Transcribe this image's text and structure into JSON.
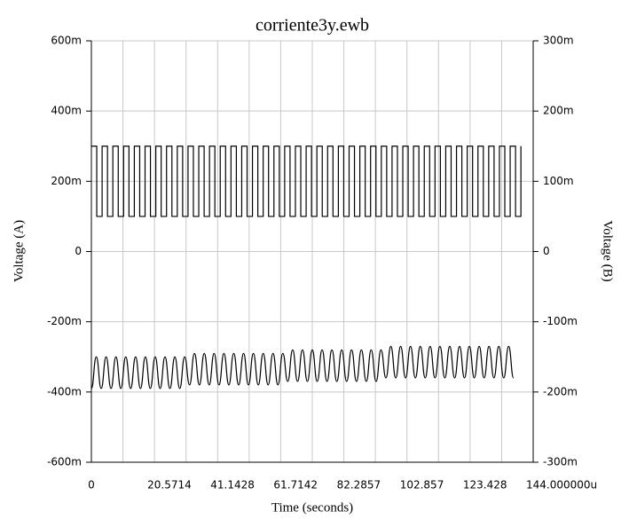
{
  "chart_data": {
    "type": "line",
    "title": "corriente3y.ewb",
    "x_label": "Time (seconds)",
    "y_label": "Voltage (A)",
    "y2_label": "Voltage (B)",
    "xlim": [
      0,
      144
    ],
    "xticks": [
      0,
      {
        "value": 20.5714,
        "label": "20.5714"
      },
      {
        "value": 41.1428,
        "label": "41.1428"
      },
      {
        "value": 61.7142,
        "label": "61.7142"
      },
      {
        "value": 82.2857,
        "label": "82.2857"
      },
      {
        "value": 102.857,
        "label": "102.857"
      },
      {
        "value": 123.428,
        "label": "123.428"
      },
      {
        "value": 144,
        "label": "144.000000u"
      }
    ],
    "xminor": [
      10.2857,
      30.8571,
      51.4285,
      72,
      92.5714,
      113.1428,
      133.7142
    ],
    "ylim": [
      -0.6,
      0.6
    ],
    "yticks": [
      {
        "value": 0.6,
        "label": "600m"
      },
      {
        "value": 0.4,
        "label": "400m"
      },
      {
        "value": 0.2,
        "label": "200m"
      },
      0,
      {
        "value": -0.2,
        "label": "-200m"
      },
      {
        "value": -0.4,
        "label": "-400m"
      },
      {
        "value": -0.6,
        "label": "-600m"
      }
    ],
    "y2lim": [
      -0.3,
      0.3
    ],
    "y2ticks": [
      {
        "value": 0.3,
        "label": "300m"
      },
      {
        "value": 0.2,
        "label": "200m"
      },
      {
        "value": 0.1,
        "label": "100m"
      },
      0,
      {
        "value": -0.1,
        "label": "-100m"
      },
      {
        "value": -0.2,
        "label": "-200m"
      },
      {
        "value": -0.3,
        "label": "-300m"
      }
    ],
    "grid": true,
    "series": [
      {
        "color": "#000000",
        "shape": "step",
        "x": [
          0,
          1.75,
          3.5,
          5.25,
          7,
          8.75,
          10.5,
          12.25,
          14,
          15.75,
          17.5,
          19.25,
          21,
          22.75,
          24.5,
          26.25,
          28,
          29.75,
          31.5,
          33.25,
          35,
          36.75,
          38.5,
          40.25,
          42,
          43.75,
          45.5,
          47.25,
          49,
          50.75,
          52.5,
          54.25,
          56,
          57.75,
          59.5,
          61.25,
          63,
          64.75,
          66.5,
          68.25,
          70,
          71.75,
          73.5,
          75.25,
          77,
          78.75,
          80.5,
          82.25,
          84,
          85.75,
          87.5,
          89.25,
          91,
          92.75,
          94.5,
          96.25,
          98,
          99.75,
          101.5,
          103.25,
          105,
          106.75,
          108.5,
          110.25,
          112,
          113.75,
          115.5,
          117.25,
          119,
          120.75,
          122.5,
          124.25,
          126,
          127.75,
          129.5,
          131.25,
          133,
          134.75,
          136.5,
          138.25,
          140
        ],
        "values": [
          0.3,
          0.1,
          0.3,
          0.1,
          0.3,
          0.1,
          0.3,
          0.1,
          0.3,
          0.1,
          0.3,
          0.1,
          0.3,
          0.1,
          0.3,
          0.1,
          0.3,
          0.1,
          0.3,
          0.1,
          0.3,
          0.1,
          0.3,
          0.1,
          0.3,
          0.1,
          0.3,
          0.1,
          0.3,
          0.1,
          0.3,
          0.1,
          0.3,
          0.1,
          0.3,
          0.1,
          0.3,
          0.1,
          0.3,
          0.1,
          0.3,
          0.1,
          0.3,
          0.1,
          0.3,
          0.1,
          0.3,
          0.1,
          0.3,
          0.1,
          0.3,
          0.1,
          0.3,
          0.1,
          0.3,
          0.1,
          0.3,
          0.1,
          0.3,
          0.1,
          0.3,
          0.1,
          0.3,
          0.1,
          0.3,
          0.1,
          0.3,
          0.1,
          0.3,
          0.1,
          0.3,
          0.1,
          0.3,
          0.1,
          0.3,
          0.1,
          0.3,
          0.1,
          0.3,
          0.1,
          0.3
        ]
      },
      {
        "color": "#000000",
        "shape": "smooth",
        "x": [
          0,
          1.6,
          3.2,
          4.8,
          6.4,
          8,
          9.6,
          11.2,
          12.8,
          14.4,
          16,
          17.6,
          19.2,
          20.8,
          22.4,
          24,
          25.6,
          27.2,
          28.8,
          30.4,
          32,
          33.6,
          35.2,
          36.8,
          38.4,
          40,
          41.6,
          43.2,
          44.8,
          46.4,
          48,
          49.6,
          51.2,
          52.8,
          54.4,
          56,
          57.6,
          59.2,
          60.8,
          62.4,
          64,
          65.6,
          67.2,
          68.8,
          70.4,
          72,
          73.6,
          75.2,
          76.8,
          78.4,
          80,
          81.6,
          83.2,
          84.8,
          86.4,
          88,
          89.6,
          91.2,
          92.8,
          94.4,
          96,
          97.6,
          99.2,
          100.8,
          102.4,
          104,
          105.6,
          107.2,
          108.8,
          110.4,
          112,
          113.6,
          115.2,
          116.8,
          118.4,
          120,
          121.6,
          123.2,
          124.8,
          126.4,
          128,
          129.6,
          131.2,
          132.8,
          134.4,
          136,
          137.6
        ],
        "values": [
          -0.39,
          -0.3,
          -0.39,
          -0.3,
          -0.39,
          -0.3,
          -0.39,
          -0.3,
          -0.39,
          -0.3,
          -0.39,
          -0.3,
          -0.39,
          -0.3,
          -0.39,
          -0.3,
          -0.39,
          -0.3,
          -0.39,
          -0.3,
          -0.38,
          -0.29,
          -0.38,
          -0.29,
          -0.38,
          -0.29,
          -0.38,
          -0.29,
          -0.38,
          -0.29,
          -0.38,
          -0.29,
          -0.38,
          -0.29,
          -0.38,
          -0.29,
          -0.38,
          -0.29,
          -0.38,
          -0.29,
          -0.37,
          -0.28,
          -0.37,
          -0.28,
          -0.37,
          -0.28,
          -0.37,
          -0.28,
          -0.37,
          -0.28,
          -0.37,
          -0.28,
          -0.37,
          -0.28,
          -0.37,
          -0.28,
          -0.37,
          -0.28,
          -0.37,
          -0.28,
          -0.36,
          -0.27,
          -0.36,
          -0.27,
          -0.36,
          -0.27,
          -0.36,
          -0.27,
          -0.36,
          -0.27,
          -0.36,
          -0.27,
          -0.36,
          -0.27,
          -0.36,
          -0.27,
          -0.36,
          -0.27,
          -0.36,
          -0.27,
          -0.36,
          -0.27,
          -0.36,
          -0.27,
          -0.36,
          -0.27,
          -0.36
        ]
      }
    ]
  }
}
